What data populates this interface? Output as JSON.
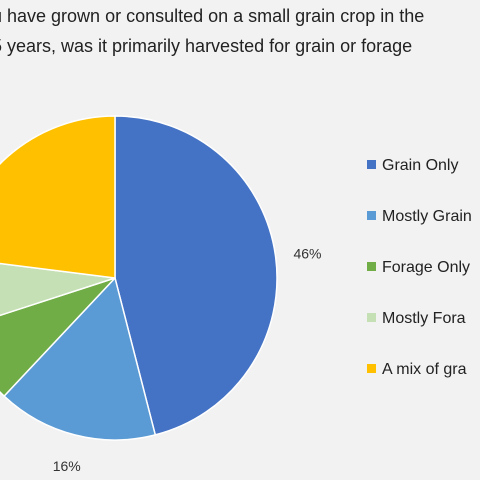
{
  "chart_data": {
    "type": "pie",
    "title_lines": [
      "u have grown or consulted on a small grain crop in the",
      "5 years, was it primarily harvested for grain or forage"
    ],
    "slices": [
      {
        "label": "Grain Only",
        "value": 46,
        "data_label": "46%",
        "color": "#4472c4"
      },
      {
        "label": "Mostly Grain",
        "value": 16,
        "data_label": "16%",
        "color": "#5b9bd5"
      },
      {
        "label": "Forage Only",
        "value": 8,
        "data_label": "",
        "color": "#70ad47"
      },
      {
        "label": "Mostly Forage",
        "value": 7,
        "data_label": "",
        "color": "#c5e0b4"
      },
      {
        "label": "A mix of grain and forage",
        "value": 23,
        "data_label": "",
        "color": "#ffc000"
      }
    ],
    "legend_labels": [
      "Grain Only",
      "Mostly Grain",
      "Forage Only",
      "Mostly Fora",
      "A mix of gra"
    ],
    "legend_position": "right",
    "start_angle_deg": 0,
    "direction": "clockwise"
  }
}
